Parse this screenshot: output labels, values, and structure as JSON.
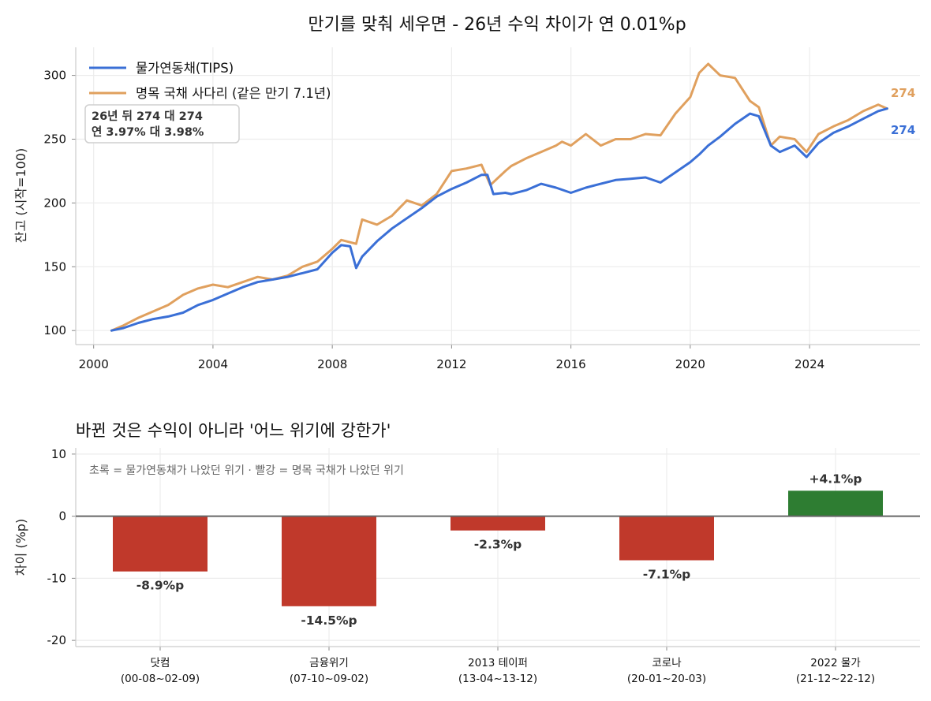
{
  "suptitle": "만기를 맞춰 세우면 - 26년 수익 차이가 연 0.01%p",
  "chart_data": [
    {
      "type": "line",
      "ylabel": "잔고 (시작=100)",
      "xlabel": "",
      "xlim": [
        1999.4,
        2027.7
      ],
      "ylim": [
        89,
        322
      ],
      "x_ticks": [
        2000,
        2004,
        2008,
        2012,
        2016,
        2020,
        2024
      ],
      "y_ticks": [
        100,
        150,
        200,
        250,
        300
      ],
      "grid": true,
      "legend_position": "top-left",
      "legend": [
        {
          "label": "물가연동채(TIPS)",
          "color": "#3a6fd6"
        },
        {
          "label": "명목 국채 사다리 (같은 만기 7.1년)",
          "color": "#e0a05e"
        }
      ],
      "annotation_lines": [
        "26년 뒤 274 대 274",
        "연 3.97% 대 3.98%"
      ],
      "end_labels": [
        {
          "text": "274",
          "color": "#e0a05e"
        },
        {
          "text": "274",
          "color": "#3a6fd6"
        }
      ],
      "series": [
        {
          "name": "물가연동채(TIPS)",
          "color": "#3a6fd6",
          "points": [
            [
              2000.6,
              100
            ],
            [
              2001.0,
              102
            ],
            [
              2001.5,
              106
            ],
            [
              2002.0,
              109
            ],
            [
              2002.5,
              111
            ],
            [
              2003.0,
              114
            ],
            [
              2003.5,
              120
            ],
            [
              2004.0,
              124
            ],
            [
              2004.5,
              129
            ],
            [
              2005.0,
              134
            ],
            [
              2005.5,
              138
            ],
            [
              2006.0,
              140
            ],
            [
              2006.5,
              142
            ],
            [
              2007.0,
              145
            ],
            [
              2007.5,
              148
            ],
            [
              2008.0,
              161
            ],
            [
              2008.3,
              167
            ],
            [
              2008.6,
              166
            ],
            [
              2008.8,
              149
            ],
            [
              2009.0,
              158
            ],
            [
              2009.5,
              170
            ],
            [
              2010.0,
              180
            ],
            [
              2010.5,
              188
            ],
            [
              2011.0,
              196
            ],
            [
              2011.5,
              205
            ],
            [
              2012.0,
              211
            ],
            [
              2012.5,
              216
            ],
            [
              2013.0,
              222
            ],
            [
              2013.2,
              222
            ],
            [
              2013.4,
              207
            ],
            [
              2013.8,
              208
            ],
            [
              2014.0,
              207
            ],
            [
              2014.5,
              210
            ],
            [
              2015.0,
              215
            ],
            [
              2015.5,
              212
            ],
            [
              2016.0,
              208
            ],
            [
              2016.5,
              212
            ],
            [
              2017.0,
              215
            ],
            [
              2017.5,
              218
            ],
            [
              2018.0,
              219
            ],
            [
              2018.5,
              220
            ],
            [
              2019.0,
              216
            ],
            [
              2019.5,
              224
            ],
            [
              2020.0,
              232
            ],
            [
              2020.3,
              238
            ],
            [
              2020.6,
              245
            ],
            [
              2021.0,
              252
            ],
            [
              2021.5,
              262
            ],
            [
              2022.0,
              270
            ],
            [
              2022.3,
              268
            ],
            [
              2022.7,
              245
            ],
            [
              2023.0,
              240
            ],
            [
              2023.5,
              245
            ],
            [
              2023.9,
              236
            ],
            [
              2024.3,
              247
            ],
            [
              2024.8,
              255
            ],
            [
              2025.3,
              260
            ],
            [
              2025.8,
              266
            ],
            [
              2026.3,
              272
            ],
            [
              2026.6,
              274
            ]
          ]
        },
        {
          "name": "명목 국채 사다리 (같은 만기 7.1년)",
          "color": "#e0a05e",
          "points": [
            [
              2000.6,
              100
            ],
            [
              2001.0,
              104
            ],
            [
              2001.5,
              110
            ],
            [
              2002.0,
              115
            ],
            [
              2002.5,
              120
            ],
            [
              2003.0,
              128
            ],
            [
              2003.5,
              133
            ],
            [
              2004.0,
              136
            ],
            [
              2004.5,
              134
            ],
            [
              2005.0,
              138
            ],
            [
              2005.5,
              142
            ],
            [
              2006.0,
              140
            ],
            [
              2006.5,
              143
            ],
            [
              2007.0,
              150
            ],
            [
              2007.5,
              154
            ],
            [
              2008.0,
              164
            ],
            [
              2008.3,
              171
            ],
            [
              2008.8,
              168
            ],
            [
              2009.0,
              187
            ],
            [
              2009.5,
              183
            ],
            [
              2010.0,
              190
            ],
            [
              2010.5,
              202
            ],
            [
              2011.0,
              198
            ],
            [
              2011.5,
              207
            ],
            [
              2012.0,
              225
            ],
            [
              2012.5,
              227
            ],
            [
              2013.0,
              230
            ],
            [
              2013.3,
              214
            ],
            [
              2013.8,
              225
            ],
            [
              2014.0,
              229
            ],
            [
              2014.5,
              235
            ],
            [
              2015.0,
              240
            ],
            [
              2015.5,
              245
            ],
            [
              2015.7,
              248
            ],
            [
              2016.0,
              245
            ],
            [
              2016.5,
              254
            ],
            [
              2017.0,
              245
            ],
            [
              2017.5,
              250
            ],
            [
              2018.0,
              250
            ],
            [
              2018.5,
              254
            ],
            [
              2019.0,
              253
            ],
            [
              2019.5,
              270
            ],
            [
              2020.0,
              283
            ],
            [
              2020.3,
              302
            ],
            [
              2020.6,
              309
            ],
            [
              2021.0,
              300
            ],
            [
              2021.5,
              298
            ],
            [
              2022.0,
              280
            ],
            [
              2022.3,
              275
            ],
            [
              2022.7,
              245
            ],
            [
              2023.0,
              252
            ],
            [
              2023.5,
              250
            ],
            [
              2023.9,
              240
            ],
            [
              2024.3,
              254
            ],
            [
              2024.8,
              260
            ],
            [
              2025.3,
              265
            ],
            [
              2025.8,
              272
            ],
            [
              2026.3,
              277
            ],
            [
              2026.6,
              274
            ]
          ]
        }
      ]
    },
    {
      "type": "bar",
      "title": "바뀐 것은 수익이 아니라 '어느 위기에 강한가'",
      "ylabel": "차이 (%p)",
      "xlabel": "",
      "ylim": [
        -21,
        11
      ],
      "y_ticks": [
        10,
        0,
        -10,
        -20
      ],
      "grid": true,
      "note": "초록 = 물가연동채가 나았던 위기   ·   빨강 = 명목 국채가 나았던 위기",
      "categories": [
        "닷컴",
        "금융위기",
        "2013 테이퍼",
        "코로나",
        "2022 물가"
      ],
      "category_sublabels": [
        "(00-08~02-09)",
        "(07-10~09-02)",
        "(13-04~13-12)",
        "(20-01~20-03)",
        "(21-12~22-12)"
      ],
      "values": [
        -8.9,
        -14.5,
        -2.3,
        -7.1,
        4.1
      ],
      "value_labels": [
        "-8.9%p",
        "-14.5%p",
        "-2.3%p",
        "-7.1%p",
        "+4.1%p"
      ],
      "colors": {
        "negative": "#c0392b",
        "positive": "#2e7d32"
      }
    }
  ]
}
